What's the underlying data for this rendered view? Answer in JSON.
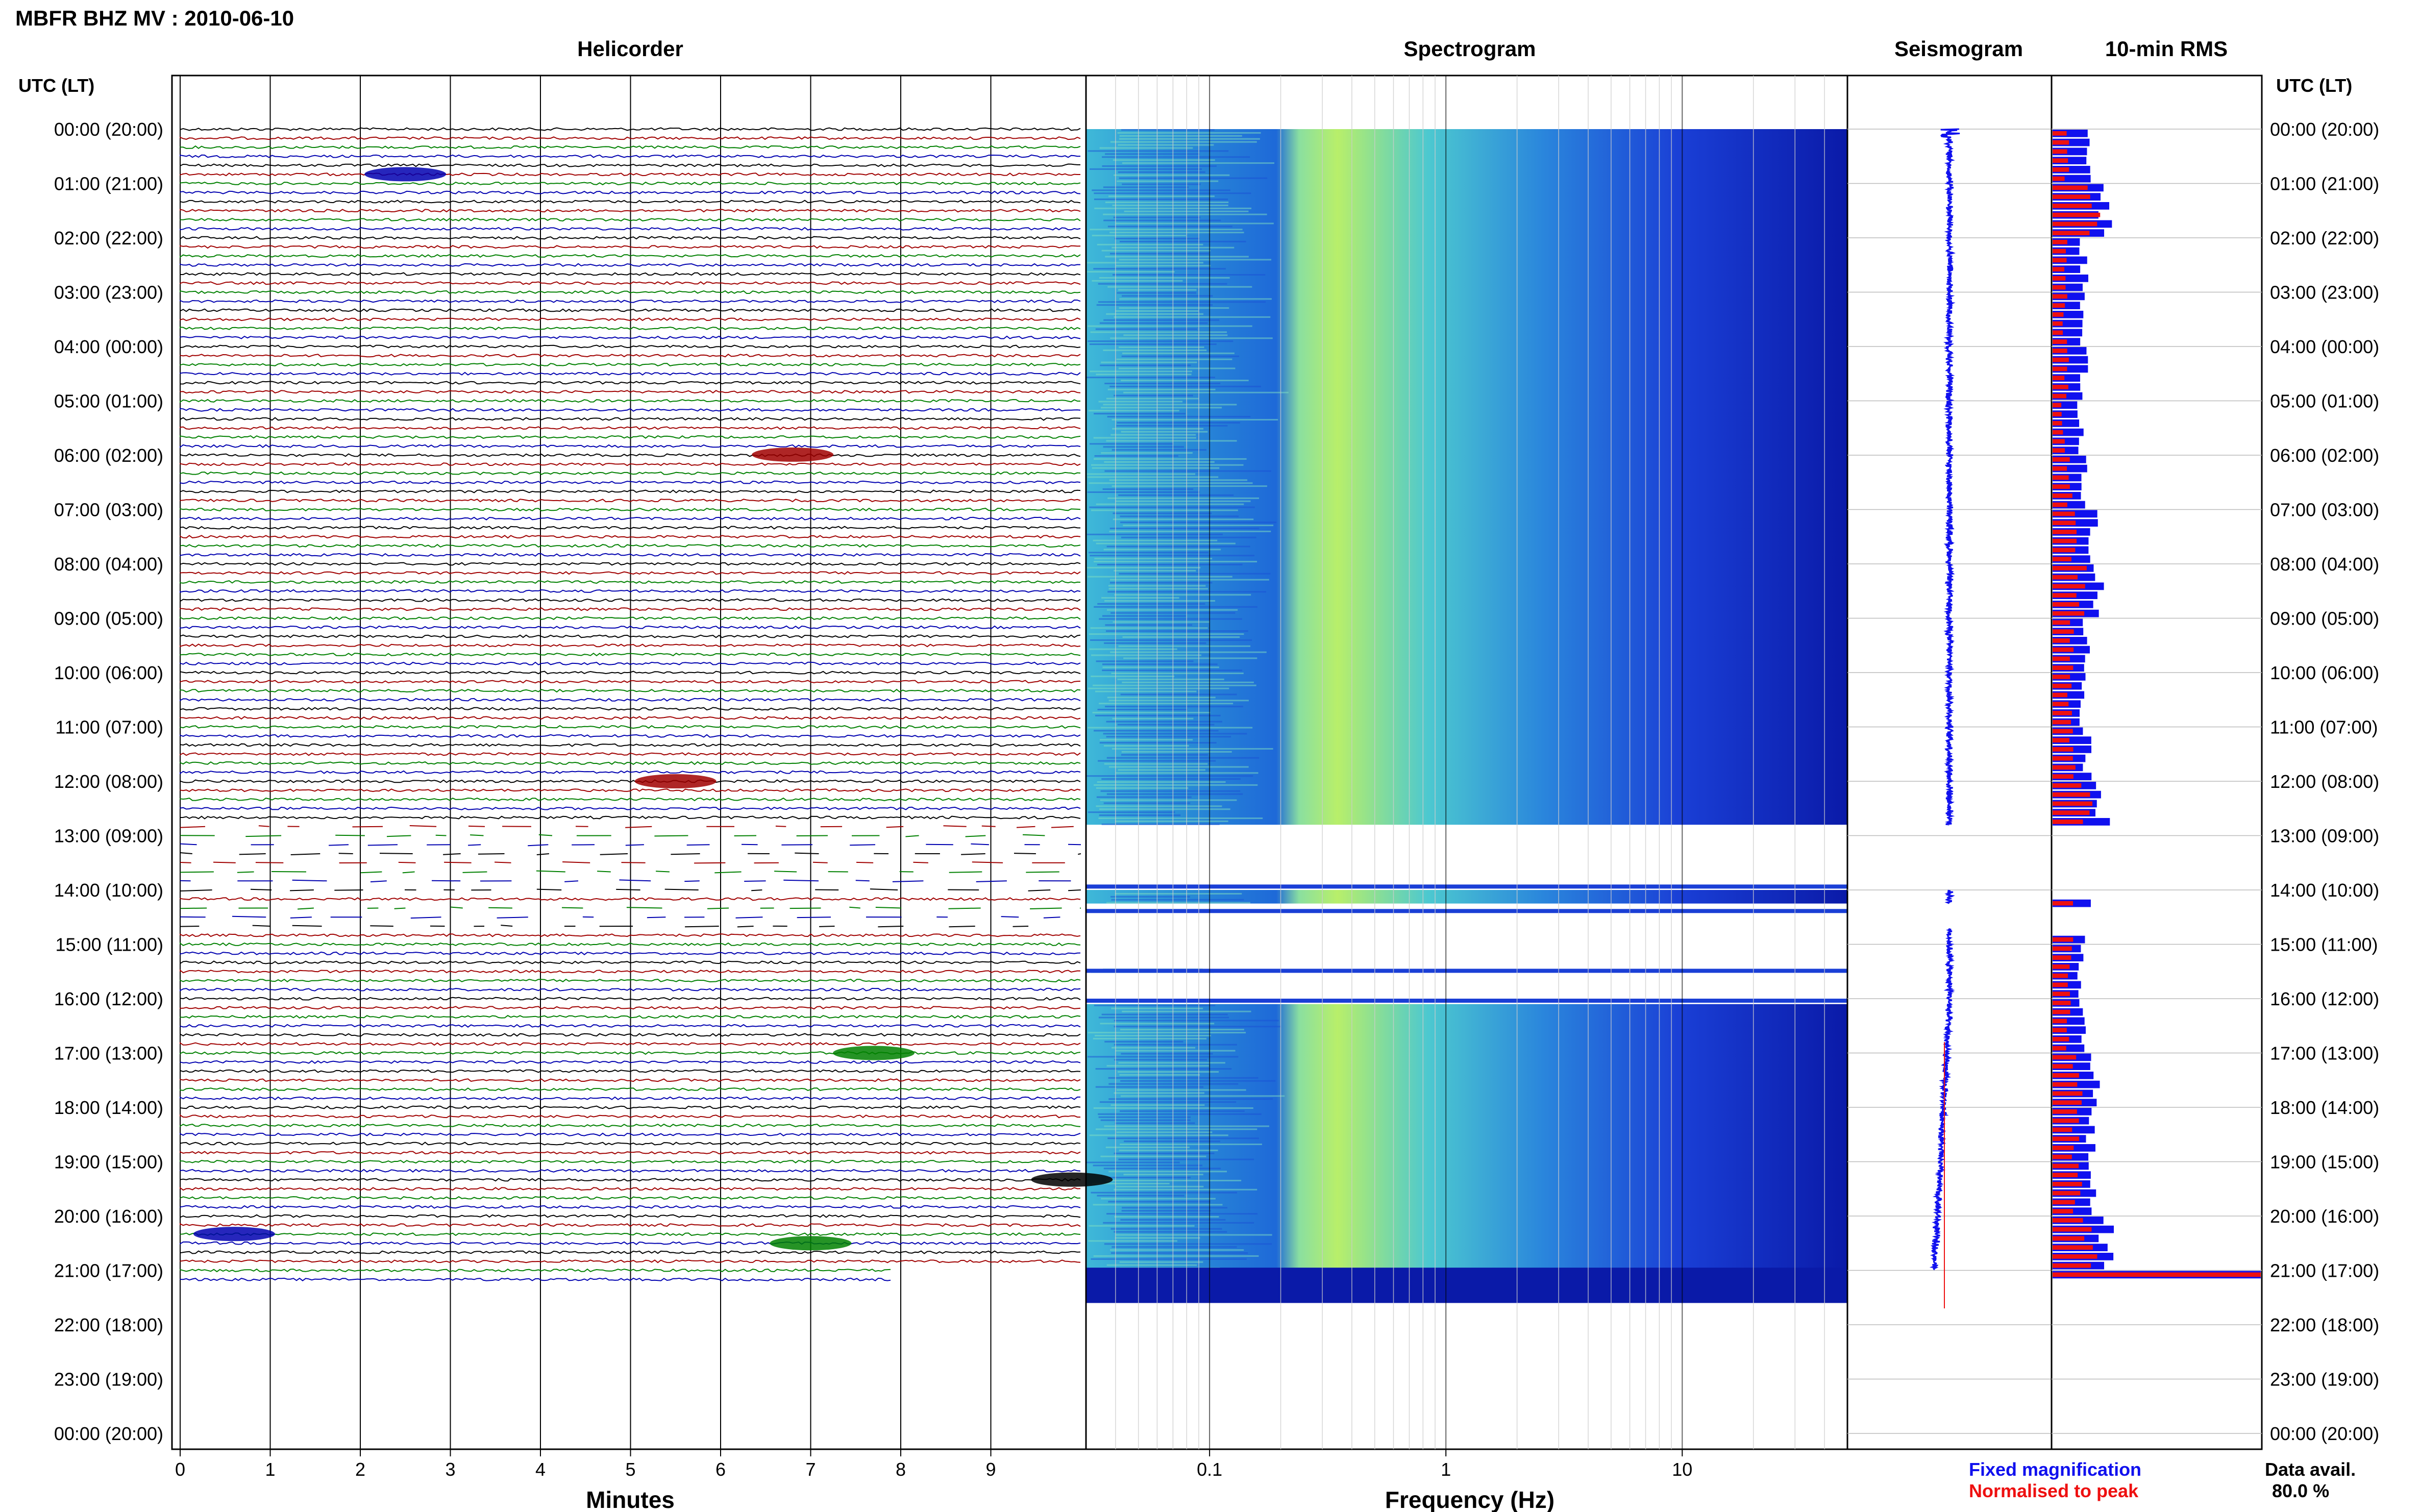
{
  "header": {
    "title": "MBFR BHZ MV : 2010-06-10"
  },
  "panels": {
    "helicorder": "Helicorder",
    "spectrogram": "Spectrogram",
    "seismogram": "Seismogram",
    "rms": "10-min RMS"
  },
  "time_axis": {
    "left_header": "UTC (LT)",
    "right_header": "UTC (LT)",
    "labels": [
      "00:00 (20:00)",
      "01:00 (21:00)",
      "02:00 (22:00)",
      "03:00 (23:00)",
      "04:00 (00:00)",
      "05:00 (01:00)",
      "06:00 (02:00)",
      "07:00 (03:00)",
      "08:00 (04:00)",
      "09:00 (05:00)",
      "10:00 (06:00)",
      "11:00 (07:00)",
      "12:00 (08:00)",
      "13:00 (09:00)",
      "14:00 (10:00)",
      "15:00 (11:00)",
      "16:00 (12:00)",
      "17:00 (13:00)",
      "18:00 (14:00)",
      "19:00 (15:00)",
      "20:00 (16:00)",
      "21:00 (17:00)",
      "22:00 (18:00)",
      "23:00 (19:00)",
      "00:00 (20:00)"
    ]
  },
  "legend": {
    "fixed": "Fixed magnification",
    "normalised": "Normalised to peak",
    "fixed_color": "#1010ee",
    "normalised_color": "#ee1010",
    "avail_label": "Data avail.",
    "avail_value": "80.0 %"
  },
  "chart_data": [
    {
      "type": "line",
      "title": "Helicorder",
      "xlabel": "Minutes",
      "x_ticks": [
        "0",
        "1",
        "2",
        "3",
        "4",
        "5",
        "6",
        "7",
        "8",
        "9"
      ],
      "xlim": [
        0,
        10
      ],
      "rows_per_hour": 6,
      "trace_colors": [
        "#000000",
        "#a00000",
        "#008000",
        "#0000b0"
      ],
      "data_hours": [
        0,
        21
      ],
      "gap_hours": [
        [
          12.8,
          14.0
        ],
        [
          14.25,
          14.7
        ]
      ],
      "events": [
        {
          "hour": 0.83,
          "minute": 2.5,
          "color": "#0000b0"
        },
        {
          "hour": 5.99,
          "minute": 6.8,
          "color": "#a00000"
        },
        {
          "hour": 12.0,
          "minute": 5.5,
          "color": "#a00000"
        },
        {
          "hour": 17.0,
          "minute": 7.7,
          "color": "#008000"
        },
        {
          "hour": 19.33,
          "minute": 9.9,
          "color": "#000000"
        },
        {
          "hour": 20.33,
          "minute": 0.6,
          "color": "#0000b0"
        },
        {
          "hour": 20.5,
          "minute": 7.0,
          "color": "#008000"
        }
      ]
    },
    {
      "type": "heatmap",
      "title": "Spectrogram",
      "xlabel": "Frequency (Hz)",
      "x_ticks": [
        "0.1",
        "1",
        "10"
      ],
      "x_scale": "log",
      "xlim": [
        0.03,
        50
      ],
      "gap_hours": [
        [
          12.8,
          14.0
        ],
        [
          14.25,
          15.4
        ],
        [
          15.5,
          16.1
        ]
      ]
    },
    {
      "type": "line",
      "title": "Seismogram",
      "data_hours": [
        0,
        21
      ]
    },
    {
      "type": "bar",
      "title": "10-min RMS",
      "series": [
        {
          "name": "Fixed magnification",
          "color": "#1010ee"
        },
        {
          "name": "Normalised to peak",
          "color": "#ee1010"
        }
      ],
      "hourly_fixed": [
        0.16,
        0.25,
        0.15,
        0.14,
        0.15,
        0.13,
        0.16,
        0.2,
        0.22,
        0.16,
        0.15,
        0.17,
        0.24,
        0.0,
        0.16,
        0.14,
        0.15,
        0.2,
        0.18,
        0.19,
        0.26,
        1.0
      ],
      "hourly_normalised": [
        0.07,
        0.2,
        0.07,
        0.06,
        0.07,
        0.05,
        0.08,
        0.1,
        0.14,
        0.09,
        0.08,
        0.1,
        0.17,
        0.0,
        0.09,
        0.08,
        0.08,
        0.12,
        0.11,
        0.12,
        0.18,
        1.0
      ]
    }
  ]
}
